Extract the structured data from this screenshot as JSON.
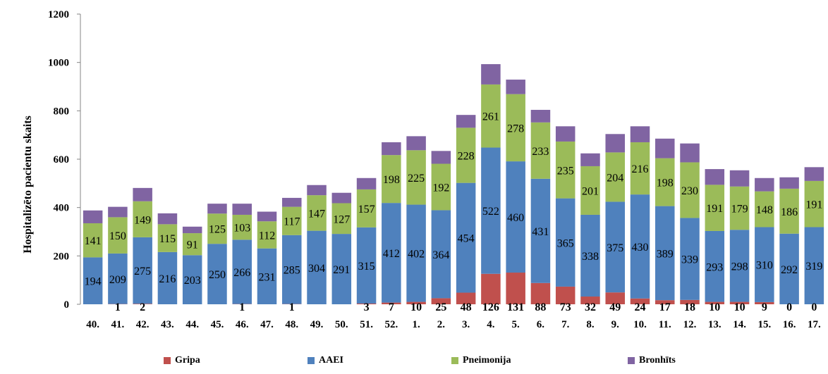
{
  "chart_data": {
    "type": "bar",
    "stacked": true,
    "title": "",
    "xlabel": "",
    "ylabel": "Hospitalizēto pacientu skaits",
    "ylim": [
      0,
      1200
    ],
    "yticks": [
      "0",
      "200",
      "400",
      "600",
      "800",
      "1000",
      "1200"
    ],
    "grid": false,
    "legend_position": "bottom",
    "categories": [
      "40.",
      "41.",
      "42.",
      "43.",
      "44.",
      "45.",
      "46.",
      "47.",
      "48.",
      "49.",
      "50.",
      "51.",
      "52.",
      "1.",
      "2.",
      "3.",
      "4.",
      "5.",
      "6.",
      "7.",
      "8.",
      "9.",
      "10.",
      "11.",
      "12.",
      "13.",
      "14.",
      "15.",
      "16.",
      "17."
    ],
    "series": [
      {
        "name": "Gripa",
        "color": "#c0504d",
        "values": [
          0,
          1,
          2,
          0,
          0,
          0,
          1,
          0,
          1,
          0,
          0,
          3,
          7,
          10,
          25,
          48,
          126,
          131,
          88,
          73,
          32,
          49,
          24,
          17,
          18,
          10,
          10,
          9,
          0,
          0
        ],
        "labels": [
          "",
          "1",
          "2",
          "",
          "",
          "",
          "1",
          "",
          "1",
          "",
          "",
          "3",
          "7",
          "10",
          "25",
          "48",
          "126",
          "131",
          "88",
          "73",
          "32",
          "49",
          "24",
          "17",
          "18",
          "10",
          "10",
          "9",
          "0",
          "0"
        ]
      },
      {
        "name": "AAEI",
        "color": "#4f81bd",
        "values": [
          194,
          209,
          275,
          216,
          203,
          250,
          266,
          231,
          285,
          304,
          291,
          315,
          412,
          402,
          364,
          454,
          522,
          460,
          431,
          365,
          338,
          375,
          430,
          389,
          339,
          293,
          298,
          310,
          292,
          319
        ],
        "labels": [
          "194",
          "209",
          "275",
          "216",
          "203",
          "250",
          "266",
          "231",
          "285",
          "304",
          "291",
          "315",
          "412",
          "402",
          "364",
          "454",
          "522",
          "460",
          "431",
          "365",
          "338",
          "375",
          "430",
          "389",
          "339",
          "293",
          "298",
          "310",
          "292",
          "319"
        ]
      },
      {
        "name": "Pneimonija",
        "color": "#9bbb59",
        "values": [
          141,
          150,
          149,
          115,
          91,
          125,
          103,
          112,
          117,
          147,
          127,
          157,
          198,
          225,
          192,
          228,
          261,
          278,
          233,
          235,
          201,
          204,
          216,
          198,
          230,
          191,
          179,
          148,
          186,
          191
        ],
        "labels": [
          "141",
          "150",
          "149",
          "115",
          "91",
          "125",
          "103",
          "112",
          "117",
          "147",
          "127",
          "157",
          "198",
          "225",
          "192",
          "228",
          "261",
          "278",
          "233",
          "235",
          "201",
          "204",
          "216",
          "198",
          "230",
          "191",
          "179",
          "148",
          "186",
          "191"
        ]
      },
      {
        "name": "Bronhīts",
        "color": "#8064a2",
        "values": [
          53,
          43,
          55,
          45,
          27,
          41,
          46,
          40,
          37,
          42,
          43,
          47,
          53,
          58,
          53,
          53,
          84,
          60,
          52,
          63,
          53,
          76,
          66,
          81,
          78,
          65,
          67,
          55,
          47,
          57
        ],
        "labels": []
      }
    ]
  }
}
